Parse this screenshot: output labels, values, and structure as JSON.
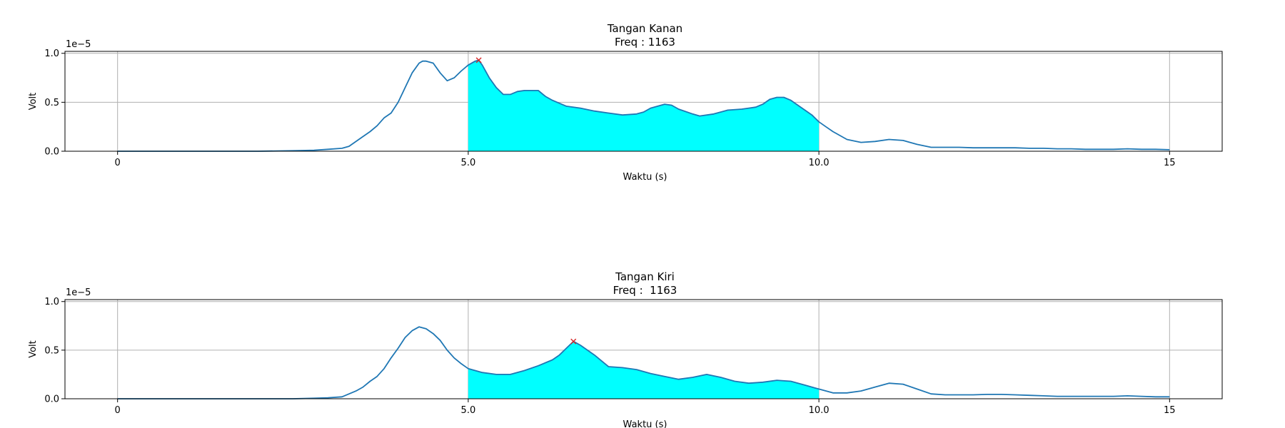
{
  "colors": {
    "line": "#1f77b4",
    "fill": "#00ffff",
    "peak_marker": "#d62728",
    "grid": "#b0b0b0",
    "frame": "#000000"
  },
  "chart_data": [
    {
      "type": "area",
      "title": "Tangan Kanan",
      "subtitle": "Freq : 1163",
      "xlabel": "Waktu (s)",
      "ylabel": "Volt",
      "y_offset_label": "1e−5",
      "xlim": [
        -0.75,
        15.75
      ],
      "ylim": [
        0,
        1.02
      ],
      "xticks": [
        0,
        5,
        10,
        15
      ],
      "xtick_labels": [
        "0",
        "5.0",
        "10.0",
        "15"
      ],
      "yticks": [
        0,
        0.5,
        1.0
      ],
      "ytick_labels": [
        "0.0",
        "0.5",
        "1.0"
      ],
      "grid": true,
      "fill_range": [
        5.0,
        10.0
      ],
      "peak": {
        "x": 5.15,
        "y": 0.93
      },
      "series": [
        {
          "x": [
            0,
            0.5,
            1,
            1.5,
            2,
            2.5,
            2.8,
            3,
            3.2,
            3.3,
            3.4,
            3.5,
            3.6,
            3.7,
            3.8,
            3.9,
            4,
            4.1,
            4.2,
            4.3,
            4.35,
            4.4,
            4.5,
            4.6,
            4.7,
            4.8,
            4.9,
            5,
            5.1,
            5.15,
            5.2,
            5.3,
            5.4,
            5.5,
            5.6,
            5.7,
            5.8,
            6,
            6.1,
            6.2,
            6.4,
            6.6,
            6.8,
            7,
            7.2,
            7.4,
            7.5,
            7.6,
            7.8,
            7.9,
            8,
            8.2,
            8.3,
            8.5,
            8.7,
            8.9,
            9,
            9.1,
            9.2,
            9.3,
            9.4,
            9.5,
            9.6,
            9.7,
            9.8,
            9.9,
            10,
            10.1,
            10.2,
            10.3,
            10.4,
            10.6,
            10.8,
            11,
            11.2,
            11.4,
            11.6,
            11.8,
            12,
            12.2,
            12.4,
            12.6,
            12.8,
            13,
            13.2,
            13.4,
            13.6,
            13.8,
            14,
            14.2,
            14.4,
            14.6,
            14.8,
            15
          ],
          "y": [
            0.0,
            0.0,
            0.0,
            0.0,
            0.0,
            0.005,
            0.01,
            0.02,
            0.03,
            0.05,
            0.1,
            0.15,
            0.2,
            0.26,
            0.34,
            0.39,
            0.5,
            0.65,
            0.8,
            0.9,
            0.92,
            0.92,
            0.9,
            0.8,
            0.72,
            0.75,
            0.82,
            0.88,
            0.92,
            0.93,
            0.88,
            0.75,
            0.65,
            0.58,
            0.58,
            0.61,
            0.62,
            0.62,
            0.56,
            0.52,
            0.46,
            0.44,
            0.41,
            0.39,
            0.37,
            0.38,
            0.4,
            0.44,
            0.48,
            0.47,
            0.43,
            0.38,
            0.36,
            0.38,
            0.42,
            0.43,
            0.44,
            0.45,
            0.48,
            0.53,
            0.55,
            0.55,
            0.52,
            0.47,
            0.42,
            0.37,
            0.3,
            0.25,
            0.2,
            0.16,
            0.12,
            0.09,
            0.1,
            0.12,
            0.11,
            0.07,
            0.04,
            0.04,
            0.04,
            0.035,
            0.035,
            0.035,
            0.035,
            0.03,
            0.03,
            0.025,
            0.025,
            0.02,
            0.02,
            0.02,
            0.025,
            0.02,
            0.02,
            0.015
          ]
        }
      ]
    },
    {
      "type": "area",
      "title": "Tangan Kiri",
      "subtitle": "Freq :  1163",
      "xlabel": "Waktu (s)",
      "ylabel": "Volt",
      "y_offset_label": "1e−5",
      "xlim": [
        -0.75,
        15.75
      ],
      "ylim": [
        0,
        1.02
      ],
      "xticks": [
        0,
        5,
        10,
        15
      ],
      "xtick_labels": [
        "0",
        "5.0",
        "10.0",
        "15"
      ],
      "yticks": [
        0,
        0.5,
        1.0
      ],
      "ytick_labels": [
        "0.0",
        "0.5",
        "1.0"
      ],
      "grid": true,
      "fill_range": [
        5.0,
        10.0
      ],
      "peak": {
        "x": 6.5,
        "y": 0.59
      },
      "series": [
        {
          "x": [
            0,
            0.5,
            1,
            1.5,
            2,
            2.5,
            2.8,
            3,
            3.2,
            3.3,
            3.4,
            3.5,
            3.6,
            3.7,
            3.8,
            3.9,
            4,
            4.1,
            4.2,
            4.3,
            4.4,
            4.5,
            4.6,
            4.7,
            4.8,
            4.9,
            5,
            5.2,
            5.4,
            5.6,
            5.8,
            6,
            6.2,
            6.3,
            6.4,
            6.5,
            6.6,
            6.8,
            7,
            7.2,
            7.4,
            7.6,
            7.8,
            8,
            8.2,
            8.4,
            8.6,
            8.8,
            9,
            9.2,
            9.4,
            9.6,
            9.8,
            10,
            10.2,
            10.4,
            10.6,
            10.8,
            11,
            11.2,
            11.4,
            11.6,
            11.8,
            12,
            12.2,
            12.4,
            12.6,
            12.8,
            13,
            13.2,
            13.4,
            13.6,
            13.8,
            14,
            14.2,
            14.4,
            14.6,
            14.8,
            15
          ],
          "y": [
            0.0,
            0.0,
            0.0,
            0.0,
            0.0,
            0.0,
            0.005,
            0.01,
            0.02,
            0.05,
            0.08,
            0.12,
            0.18,
            0.23,
            0.31,
            0.42,
            0.52,
            0.63,
            0.7,
            0.74,
            0.72,
            0.67,
            0.6,
            0.5,
            0.42,
            0.36,
            0.31,
            0.27,
            0.25,
            0.25,
            0.29,
            0.34,
            0.4,
            0.45,
            0.52,
            0.59,
            0.55,
            0.45,
            0.33,
            0.32,
            0.3,
            0.26,
            0.23,
            0.2,
            0.22,
            0.25,
            0.22,
            0.18,
            0.16,
            0.17,
            0.19,
            0.18,
            0.14,
            0.1,
            0.06,
            0.06,
            0.08,
            0.12,
            0.16,
            0.15,
            0.1,
            0.05,
            0.04,
            0.04,
            0.04,
            0.045,
            0.045,
            0.04,
            0.035,
            0.03,
            0.025,
            0.025,
            0.025,
            0.025,
            0.025,
            0.03,
            0.025,
            0.02,
            0.02
          ]
        }
      ]
    }
  ]
}
